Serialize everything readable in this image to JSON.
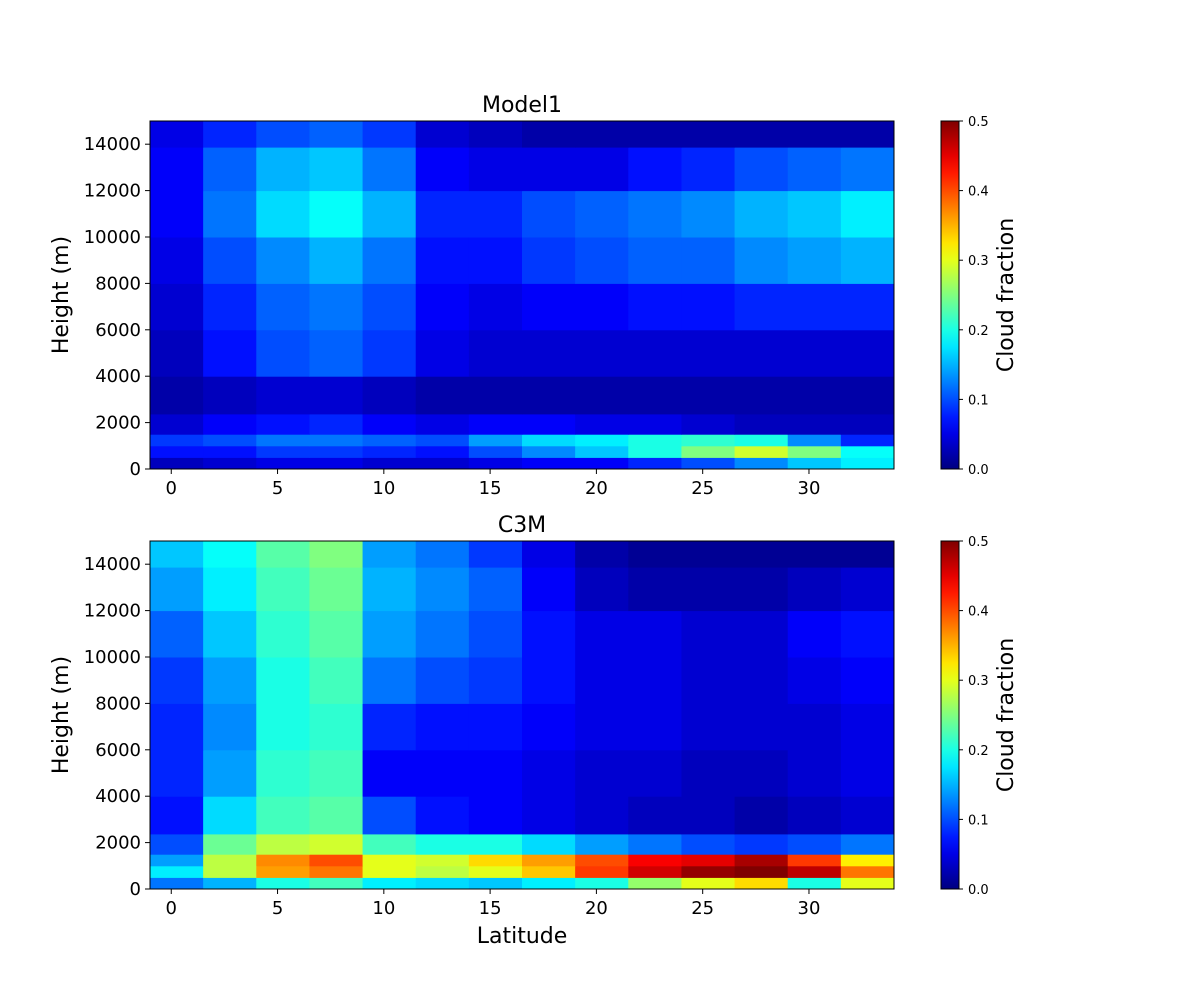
{
  "colormap": "jet",
  "chart_data": [
    {
      "type": "heatmap",
      "title": "Model1",
      "xlabel": "",
      "ylabel": "Height (m)",
      "colorbar_label": "Cloud fraction",
      "clim": [
        0,
        0.5
      ],
      "colorbar_ticks": [
        "0.0",
        "0.1",
        "0.2",
        "0.3",
        "0.4",
        "0.5"
      ],
      "xlim": [
        -1,
        34
      ],
      "ylim": [
        0,
        15000
      ],
      "x_ticks": [
        "0",
        "5",
        "10",
        "15",
        "20",
        "25",
        "30"
      ],
      "y_ticks": [
        "0",
        "2000",
        "4000",
        "6000",
        "8000",
        "10000",
        "12000",
        "14000"
      ],
      "x": [
        0.25,
        2.75,
        5.25,
        7.75,
        10.25,
        12.75,
        15.25,
        17.75,
        20.25,
        22.75,
        25.25,
        27.75,
        30.25,
        32.75
      ],
      "height_bands": [
        250,
        750,
        1250,
        1750,
        3000,
        5000,
        7000,
        9000,
        11000,
        13000,
        14750
      ],
      "values": [
        [
          0.03,
          0.04,
          0.05,
          0.05,
          0.04,
          0.04,
          0.05,
          0.06,
          0.06,
          0.08,
          0.1,
          0.13,
          0.16,
          0.18
        ],
        [
          0.07,
          0.07,
          0.09,
          0.09,
          0.08,
          0.07,
          0.1,
          0.13,
          0.16,
          0.2,
          0.25,
          0.29,
          0.25,
          0.19
        ],
        [
          0.09,
          0.1,
          0.12,
          0.12,
          0.11,
          0.1,
          0.14,
          0.17,
          0.18,
          0.2,
          0.21,
          0.2,
          0.13,
          0.08
        ],
        [
          0.04,
          0.06,
          0.07,
          0.08,
          0.06,
          0.05,
          0.06,
          0.06,
          0.05,
          0.05,
          0.04,
          0.03,
          0.03,
          0.03
        ],
        [
          0.02,
          0.03,
          0.04,
          0.04,
          0.03,
          0.02,
          0.02,
          0.02,
          0.02,
          0.02,
          0.02,
          0.02,
          0.02,
          0.02
        ],
        [
          0.03,
          0.07,
          0.1,
          0.11,
          0.09,
          0.05,
          0.04,
          0.04,
          0.04,
          0.04,
          0.04,
          0.04,
          0.04,
          0.04
        ],
        [
          0.04,
          0.08,
          0.11,
          0.12,
          0.1,
          0.06,
          0.05,
          0.06,
          0.06,
          0.07,
          0.07,
          0.08,
          0.08,
          0.08
        ],
        [
          0.05,
          0.1,
          0.13,
          0.15,
          0.12,
          0.07,
          0.07,
          0.09,
          0.1,
          0.11,
          0.11,
          0.13,
          0.14,
          0.15
        ],
        [
          0.06,
          0.12,
          0.17,
          0.19,
          0.15,
          0.08,
          0.08,
          0.1,
          0.11,
          0.12,
          0.13,
          0.15,
          0.16,
          0.18
        ],
        [
          0.06,
          0.11,
          0.15,
          0.16,
          0.12,
          0.06,
          0.05,
          0.05,
          0.05,
          0.07,
          0.08,
          0.1,
          0.11,
          0.12
        ],
        [
          0.05,
          0.08,
          0.1,
          0.11,
          0.09,
          0.04,
          0.03,
          0.02,
          0.02,
          0.02,
          0.02,
          0.02,
          0.02,
          0.02
        ]
      ]
    },
    {
      "type": "heatmap",
      "title": "C3M",
      "xlabel": "Latitude",
      "ylabel": "Height (m)",
      "colorbar_label": "Cloud fraction",
      "clim": [
        0,
        0.5
      ],
      "colorbar_ticks": [
        "0.0",
        "0.1",
        "0.2",
        "0.3",
        "0.4",
        "0.5"
      ],
      "xlim": [
        -1,
        34
      ],
      "ylim": [
        0,
        15000
      ],
      "x_ticks": [
        "0",
        "5",
        "10",
        "15",
        "20",
        "25",
        "30"
      ],
      "y_ticks": [
        "0",
        "2000",
        "4000",
        "6000",
        "8000",
        "10000",
        "12000",
        "14000"
      ],
      "x": [
        0.25,
        2.75,
        5.25,
        7.75,
        10.25,
        12.75,
        15.25,
        17.75,
        20.25,
        22.75,
        25.25,
        27.75,
        30.25,
        32.75
      ],
      "height_bands": [
        250,
        750,
        1250,
        1750,
        3000,
        5000,
        7000,
        9000,
        11000,
        13000,
        14750
      ],
      "values": [
        [
          0.12,
          0.15,
          0.2,
          0.22,
          0.18,
          0.17,
          0.16,
          0.18,
          0.2,
          0.26,
          0.3,
          0.33,
          0.2,
          0.3
        ],
        [
          0.18,
          0.28,
          0.36,
          0.38,
          0.3,
          0.28,
          0.3,
          0.34,
          0.41,
          0.46,
          0.49,
          0.5,
          0.47,
          0.38
        ],
        [
          0.14,
          0.28,
          0.37,
          0.4,
          0.3,
          0.29,
          0.33,
          0.36,
          0.4,
          0.44,
          0.45,
          0.48,
          0.41,
          0.32
        ],
        [
          0.1,
          0.24,
          0.28,
          0.29,
          0.22,
          0.2,
          0.2,
          0.17,
          0.14,
          0.12,
          0.1,
          0.09,
          0.1,
          0.12
        ],
        [
          0.07,
          0.17,
          0.22,
          0.23,
          0.1,
          0.07,
          0.06,
          0.05,
          0.04,
          0.03,
          0.03,
          0.02,
          0.03,
          0.04
        ],
        [
          0.08,
          0.14,
          0.21,
          0.22,
          0.06,
          0.06,
          0.06,
          0.05,
          0.04,
          0.04,
          0.03,
          0.03,
          0.04,
          0.05
        ],
        [
          0.08,
          0.13,
          0.2,
          0.21,
          0.08,
          0.07,
          0.07,
          0.06,
          0.05,
          0.05,
          0.04,
          0.04,
          0.04,
          0.05
        ],
        [
          0.09,
          0.14,
          0.2,
          0.22,
          0.12,
          0.1,
          0.09,
          0.07,
          0.05,
          0.05,
          0.04,
          0.04,
          0.05,
          0.06
        ],
        [
          0.11,
          0.16,
          0.21,
          0.23,
          0.14,
          0.12,
          0.1,
          0.07,
          0.05,
          0.05,
          0.04,
          0.04,
          0.06,
          0.07
        ],
        [
          0.14,
          0.18,
          0.22,
          0.24,
          0.15,
          0.13,
          0.11,
          0.06,
          0.03,
          0.02,
          0.02,
          0.02,
          0.03,
          0.04
        ],
        [
          0.16,
          0.19,
          0.23,
          0.25,
          0.14,
          0.12,
          0.09,
          0.05,
          0.02,
          0.01,
          0.01,
          0.01,
          0.01,
          0.01
        ]
      ]
    }
  ]
}
